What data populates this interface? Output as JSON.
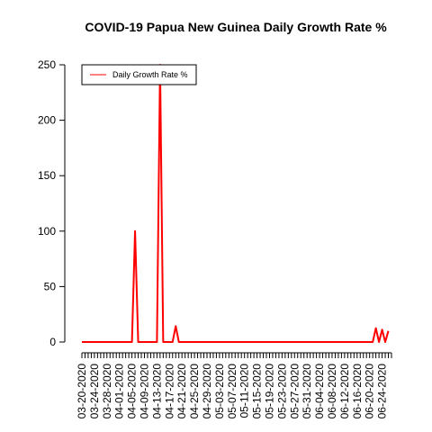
{
  "chart_data": {
    "type": "line",
    "title": "COVID-19 Papua New Guinea Daily Growth Rate %",
    "xlabel": "",
    "ylabel": "",
    "ylim": [
      0,
      250
    ],
    "y_ticks": [
      0,
      50,
      100,
      150,
      200,
      250
    ],
    "x_tick_labels": [
      "03-20-2020",
      "03-24-2020",
      "03-28-2020",
      "04-01-2020",
      "04-05-2020",
      "04-09-2020",
      "04-13-2020",
      "04-17-2020",
      "04-21-2020",
      "04-25-2020",
      "04-29-2020",
      "05-03-2020",
      "05-07-2020",
      "05-11-2020",
      "05-15-2020",
      "05-19-2020",
      "05-23-2020",
      "05-27-2020",
      "05-31-2020",
      "06-04-2020",
      "06-08-2020",
      "06-12-2020",
      "06-16-2020",
      "06-20-2020",
      "06-24-2020"
    ],
    "x_start": "03-20-2020",
    "x_end": "06-27-2020",
    "legend": {
      "position": "top-left",
      "entries": [
        "Daily Growth Rate %"
      ]
    },
    "grid": false,
    "series": [
      {
        "name": "Daily Growth Rate %",
        "color": "#ff0000",
        "points": [
          [
            "03-20-2020",
            0
          ],
          [
            "04-05-2020",
            0
          ],
          [
            "04-06-2020",
            100
          ],
          [
            "04-07-2020",
            0
          ],
          [
            "04-13-2020",
            0
          ],
          [
            "04-14-2020",
            250
          ],
          [
            "04-15-2020",
            0
          ],
          [
            "04-18-2020",
            0
          ],
          [
            "04-19-2020",
            14.3
          ],
          [
            "04-20-2020",
            0
          ],
          [
            "06-21-2020",
            0
          ],
          [
            "06-22-2020",
            12.5
          ],
          [
            "06-23-2020",
            0
          ],
          [
            "06-24-2020",
            11.1
          ],
          [
            "06-25-2020",
            0
          ],
          [
            "06-26-2020",
            10
          ]
        ]
      }
    ]
  }
}
